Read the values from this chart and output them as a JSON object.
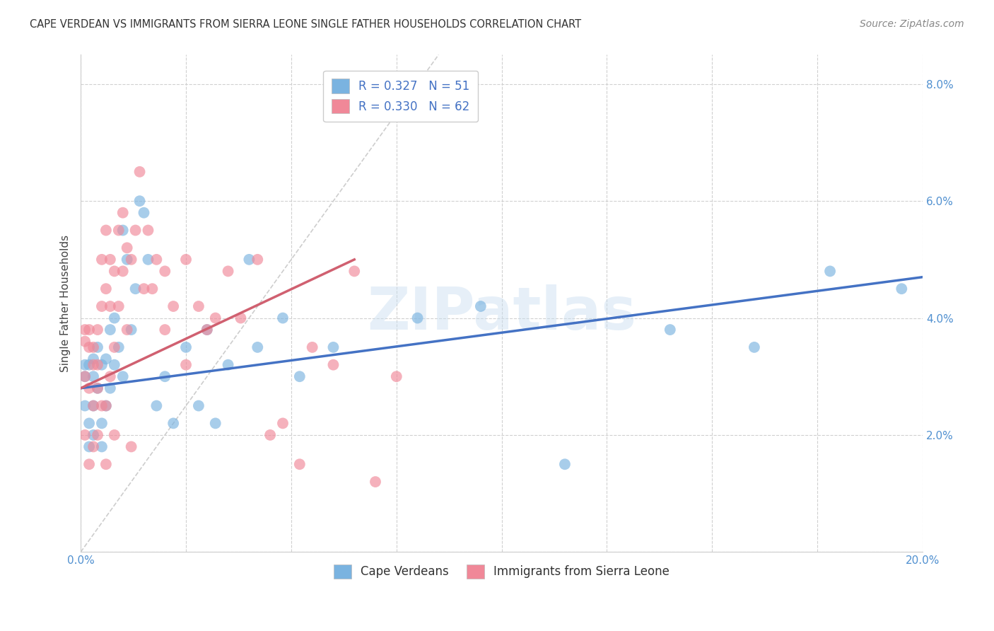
{
  "title": "CAPE VERDEAN VS IMMIGRANTS FROM SIERRA LEONE SINGLE FATHER HOUSEHOLDS CORRELATION CHART",
  "source": "Source: ZipAtlas.com",
  "ylabel": "Single Father Households",
  "xlim": [
    0.0,
    0.2
  ],
  "ylim": [
    0.0,
    0.085
  ],
  "xticks": [
    0.0,
    0.025,
    0.05,
    0.075,
    0.1,
    0.125,
    0.15,
    0.175,
    0.2
  ],
  "yticks": [
    0.0,
    0.02,
    0.04,
    0.06,
    0.08
  ],
  "ytick_labels_right": [
    "",
    "2.0%",
    "4.0%",
    "6.0%",
    "8.0%"
  ],
  "xtick_label_left": "0.0%",
  "xtick_label_right": "20.0%",
  "blue_color": "#7ab3e0",
  "pink_color": "#f08898",
  "blue_line_color": "#4472c4",
  "pink_line_color": "#d06070",
  "diagonal_line_color": "#c8c8c8",
  "watermark": "ZIPatlas",
  "blue_scatter_x": [
    0.001,
    0.001,
    0.001,
    0.002,
    0.002,
    0.002,
    0.003,
    0.003,
    0.003,
    0.003,
    0.004,
    0.004,
    0.005,
    0.005,
    0.005,
    0.006,
    0.006,
    0.007,
    0.007,
    0.008,
    0.008,
    0.009,
    0.01,
    0.01,
    0.011,
    0.012,
    0.013,
    0.014,
    0.015,
    0.016,
    0.018,
    0.02,
    0.022,
    0.025,
    0.028,
    0.03,
    0.032,
    0.035,
    0.04,
    0.042,
    0.048,
    0.052,
    0.06,
    0.065,
    0.08,
    0.095,
    0.115,
    0.14,
    0.16,
    0.178,
    0.195
  ],
  "blue_scatter_y": [
    0.03,
    0.025,
    0.032,
    0.022,
    0.032,
    0.018,
    0.033,
    0.025,
    0.03,
    0.02,
    0.035,
    0.028,
    0.032,
    0.022,
    0.018,
    0.033,
    0.025,
    0.038,
    0.028,
    0.04,
    0.032,
    0.035,
    0.03,
    0.055,
    0.05,
    0.038,
    0.045,
    0.06,
    0.058,
    0.05,
    0.025,
    0.03,
    0.022,
    0.035,
    0.025,
    0.038,
    0.022,
    0.032,
    0.05,
    0.035,
    0.04,
    0.03,
    0.035,
    0.075,
    0.04,
    0.042,
    0.015,
    0.038,
    0.035,
    0.048,
    0.045
  ],
  "pink_scatter_x": [
    0.001,
    0.001,
    0.001,
    0.001,
    0.002,
    0.002,
    0.002,
    0.002,
    0.003,
    0.003,
    0.003,
    0.003,
    0.004,
    0.004,
    0.004,
    0.004,
    0.005,
    0.005,
    0.005,
    0.006,
    0.006,
    0.006,
    0.007,
    0.007,
    0.007,
    0.008,
    0.008,
    0.009,
    0.009,
    0.01,
    0.01,
    0.011,
    0.011,
    0.012,
    0.013,
    0.014,
    0.015,
    0.016,
    0.017,
    0.018,
    0.02,
    0.022,
    0.025,
    0.028,
    0.032,
    0.035,
    0.038,
    0.042,
    0.045,
    0.048,
    0.052,
    0.055,
    0.06,
    0.065,
    0.07,
    0.075,
    0.02,
    0.025,
    0.03,
    0.012,
    0.008,
    0.006
  ],
  "pink_scatter_y": [
    0.036,
    0.03,
    0.038,
    0.02,
    0.038,
    0.035,
    0.028,
    0.015,
    0.035,
    0.032,
    0.025,
    0.018,
    0.038,
    0.032,
    0.028,
    0.02,
    0.05,
    0.042,
    0.025,
    0.055,
    0.045,
    0.025,
    0.05,
    0.042,
    0.03,
    0.048,
    0.035,
    0.055,
    0.042,
    0.058,
    0.048,
    0.052,
    0.038,
    0.05,
    0.055,
    0.065,
    0.045,
    0.055,
    0.045,
    0.05,
    0.048,
    0.042,
    0.05,
    0.042,
    0.04,
    0.048,
    0.04,
    0.05,
    0.02,
    0.022,
    0.015,
    0.035,
    0.032,
    0.048,
    0.012,
    0.03,
    0.038,
    0.032,
    0.038,
    0.018,
    0.02,
    0.015
  ],
  "blue_line_x0": 0.0,
  "blue_line_x1": 0.2,
  "blue_line_y0": 0.028,
  "blue_line_y1": 0.047,
  "pink_line_x0": 0.0,
  "pink_line_x1": 0.065,
  "pink_line_y0": 0.028,
  "pink_line_y1": 0.05
}
